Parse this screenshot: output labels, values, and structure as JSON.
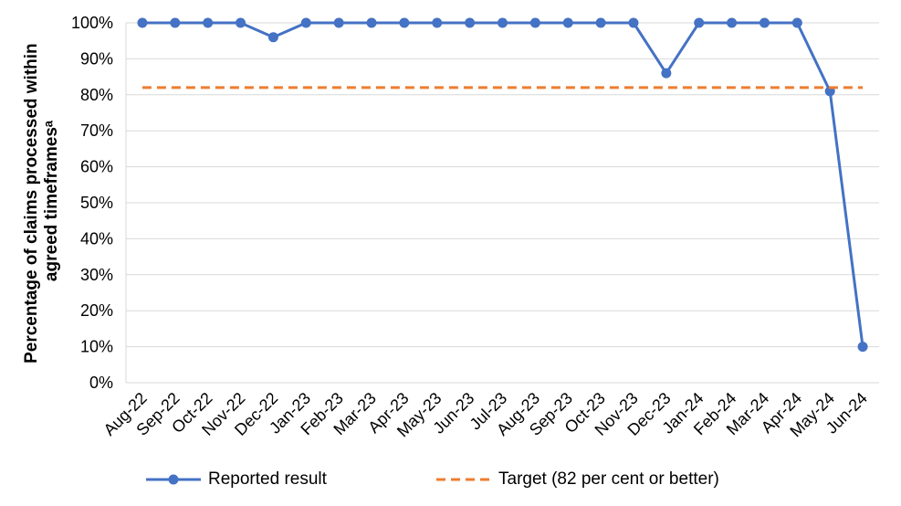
{
  "chart_data": {
    "type": "line",
    "title": "",
    "ylabel": "Percentage of claims processed within agreed timeframesᵃ",
    "xlabel": "",
    "ylim": [
      0,
      100
    ],
    "yticks": [
      "0%",
      "10%",
      "20%",
      "30%",
      "40%",
      "50%",
      "60%",
      "70%",
      "80%",
      "90%",
      "100%"
    ],
    "categories": [
      "Aug-22",
      "Sep-22",
      "Oct-22",
      "Nov-22",
      "Dec-22",
      "Jan-23",
      "Feb-23",
      "Mar-23",
      "Apr-23",
      "May-23",
      "Jun-23",
      "Jul-23",
      "Aug-23",
      "Sep-23",
      "Oct-23",
      "Nov-23",
      "Dec-23",
      "Jan-24",
      "Feb-24",
      "Mar-24",
      "Apr-24",
      "May-24",
      "Jun-24"
    ],
    "grid": true,
    "legend_position": "bottom",
    "series": [
      {
        "name": "Reported result",
        "color": "#4472C4",
        "style": "solid-with-markers",
        "values": [
          100,
          100,
          100,
          100,
          96,
          100,
          100,
          100,
          100,
          100,
          100,
          100,
          100,
          100,
          100,
          100,
          86,
          100,
          100,
          100,
          100,
          81,
          10
        ]
      },
      {
        "name": "Target (82 per cent or better)",
        "color": "#ED7D31",
        "style": "dashed",
        "values": [
          82,
          82,
          82,
          82,
          82,
          82,
          82,
          82,
          82,
          82,
          82,
          82,
          82,
          82,
          82,
          82,
          82,
          82,
          82,
          82,
          82,
          82,
          82
        ]
      }
    ]
  }
}
